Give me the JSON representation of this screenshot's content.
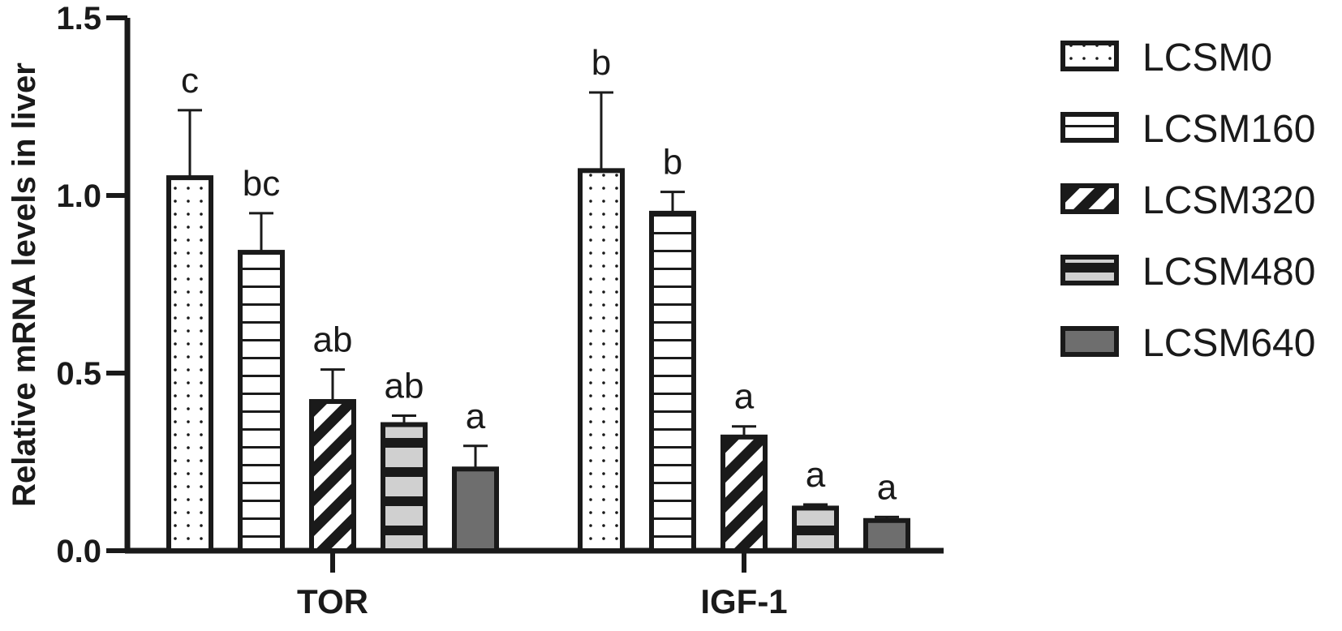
{
  "chart_data": {
    "type": "bar",
    "title": "",
    "xlabel": "",
    "ylabel": "Relative mRNA levels in liver",
    "ylim": [
      0,
      1.5
    ],
    "yticks": [
      "0.0",
      "0.5",
      "1.0",
      "1.5"
    ],
    "categories": [
      "TOR",
      "IGF-1"
    ],
    "legend_position": "right",
    "series": [
      {
        "name": "LCSM0",
        "pattern": "dots",
        "values": [
          1.05,
          1.07
        ],
        "errors": [
          0.19,
          0.22
        ],
        "labels": [
          "c",
          "b"
        ]
      },
      {
        "name": "LCSM160",
        "pattern": "horizontal",
        "values": [
          0.84,
          0.95
        ],
        "errors": [
          0.11,
          0.06
        ],
        "labels": [
          "bc",
          "b"
        ]
      },
      {
        "name": "LCSM320",
        "pattern": "diagonal",
        "values": [
          0.42,
          0.32
        ],
        "errors": [
          0.09,
          0.03
        ],
        "labels": [
          "ab",
          "a"
        ]
      },
      {
        "name": "LCSM480",
        "pattern": "thickbands",
        "values": [
          0.355,
          0.12
        ],
        "errors": [
          0.025,
          0.01
        ],
        "labels": [
          "ab",
          "a"
        ]
      },
      {
        "name": "LCSM640",
        "pattern": "solid",
        "values": [
          0.23,
          0.085
        ],
        "errors": [
          0.065,
          0.01
        ],
        "labels": [
          "a",
          "a"
        ]
      }
    ]
  }
}
